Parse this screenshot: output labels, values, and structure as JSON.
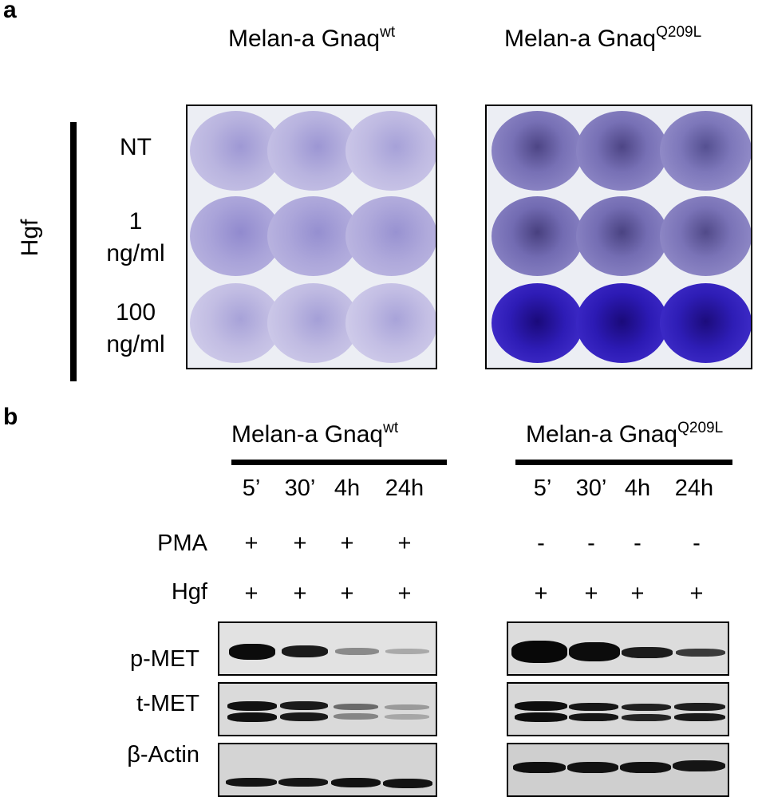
{
  "panel_a": {
    "letter": "a",
    "group_label": "Hgf",
    "left_title": {
      "prefix": "Melan-a  Gnaq",
      "sup": "wt"
    },
    "right_title": {
      "prefix": "Melan-a  Gnaq",
      "sup": "Q209L"
    },
    "rows": [
      {
        "label": "NT"
      },
      {
        "label": "1\nng/ml"
      },
      {
        "label": "100\nng/ml"
      }
    ],
    "colors": {
      "wt_well": "#b3aedb",
      "mut_well": "#8a84c4",
      "mut_well_strong": "#3b21c8"
    }
  },
  "panel_b": {
    "letter": "b",
    "left_title": {
      "prefix": "Melan-a  Gnaq",
      "sup": "wt"
    },
    "right_title": {
      "prefix": "Melan-a  Gnaq",
      "sup": "Q209L"
    },
    "timepoints_left": [
      "5’",
      "30’",
      "4h",
      "24h"
    ],
    "timepoints_right": [
      "5’",
      "30’",
      "4h",
      "24h"
    ],
    "treatments": [
      {
        "label": "PMA",
        "left": [
          "+",
          "+",
          "+",
          "+"
        ],
        "right": [
          "-",
          "-",
          "-",
          "-"
        ]
      },
      {
        "label": "Hgf",
        "left": [
          "+",
          "+",
          "+",
          "+"
        ],
        "right": [
          "+",
          "+",
          "+",
          "+"
        ]
      }
    ],
    "blots": [
      {
        "label": "p-MET"
      },
      {
        "label": "t-MET"
      },
      {
        "label": "β-Actin"
      }
    ]
  }
}
